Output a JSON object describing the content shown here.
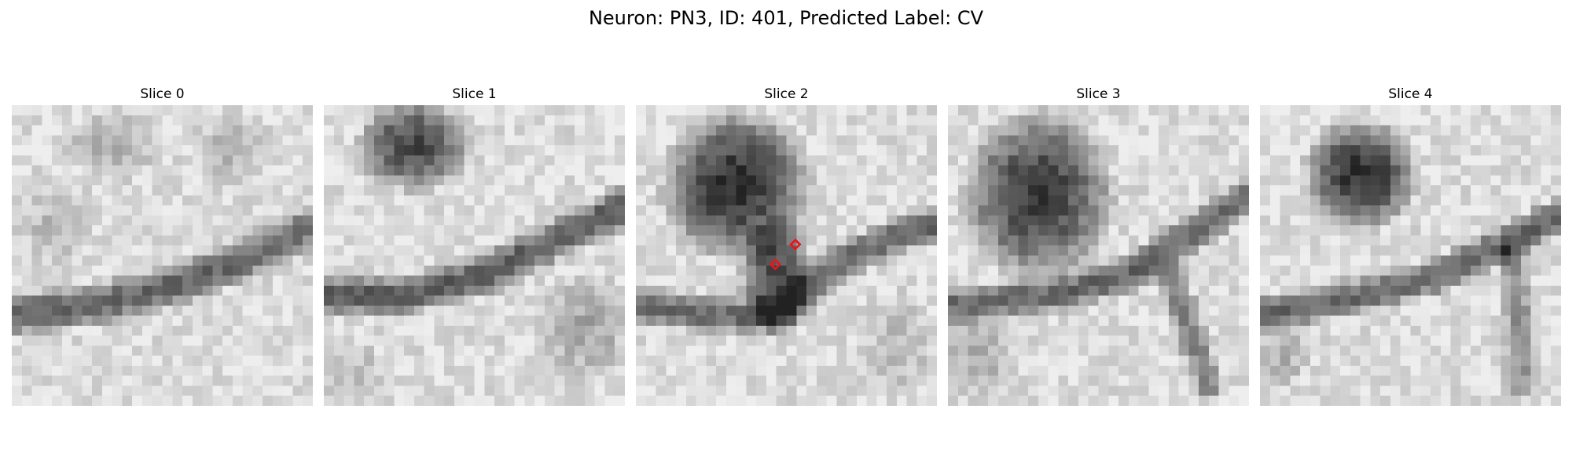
{
  "figure": {
    "title": "Neuron: PN3, ID: 401, Predicted Label: CV"
  },
  "panels": [
    {
      "title": "Slice 0"
    },
    {
      "title": "Slice 1"
    },
    {
      "title": "Slice 2",
      "markers": [
        {
          "color": "#e8151b"
        },
        {
          "color": "#e8151b"
        }
      ]
    },
    {
      "title": "Slice 3"
    },
    {
      "title": "Slice 4"
    }
  ]
}
